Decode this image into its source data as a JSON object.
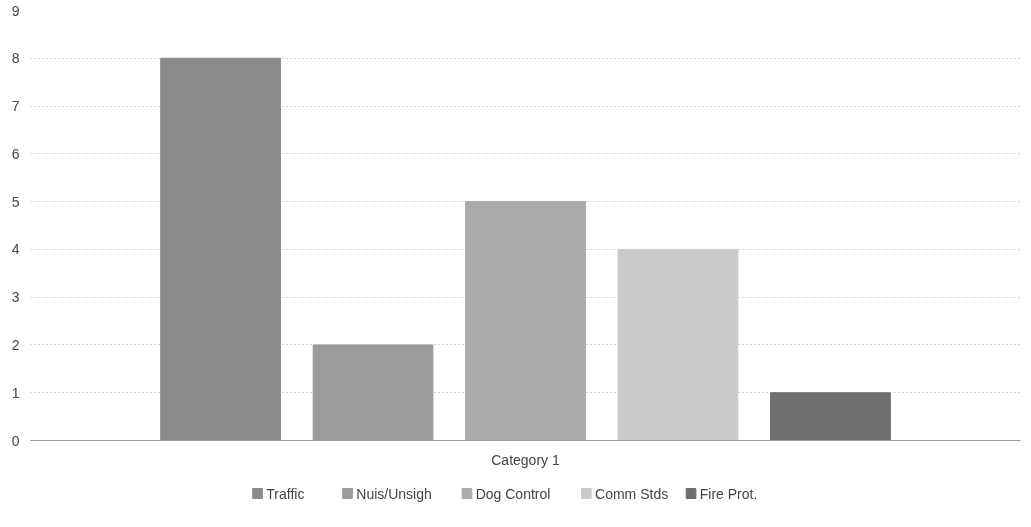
{
  "chart_data": {
    "type": "bar",
    "categories": [
      "Category 1"
    ],
    "series": [
      {
        "name": "Traffic",
        "color": "#8a8a8a",
        "values": [
          8
        ]
      },
      {
        "name": "Nuis/Unsigh",
        "color": "#9c9c9c",
        "values": [
          2
        ]
      },
      {
        "name": "Dog Control",
        "color": "#ababab",
        "values": [
          5
        ]
      },
      {
        "name": "Comm Stds",
        "color": "#cacaca",
        "values": [
          4
        ]
      },
      {
        "name": "Fire Prot.",
        "color": "#6e6e6e",
        "values": [
          1
        ]
      }
    ],
    "ylim": [
      0,
      9
    ],
    "yticks": [
      0,
      1,
      2,
      3,
      4,
      5,
      6,
      7,
      8,
      9
    ],
    "grid": "y",
    "legend": "bottom"
  }
}
